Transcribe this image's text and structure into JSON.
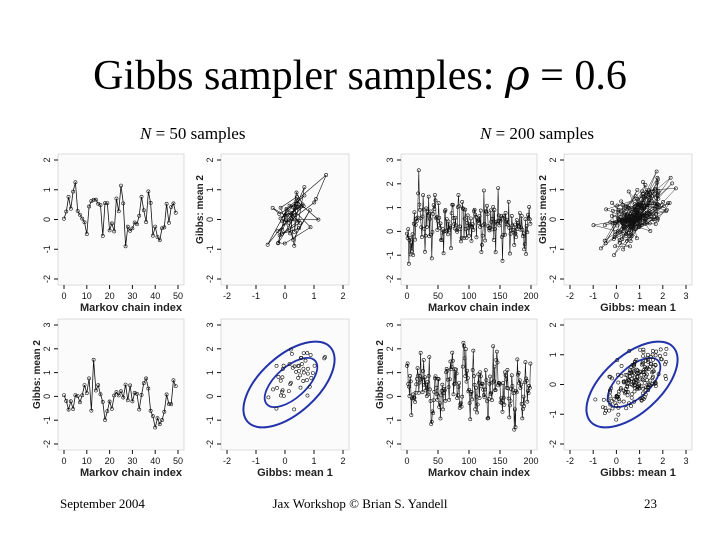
{
  "slide": {
    "title_prefix": "Gibbs sampler samples: ",
    "title_symbol": "ρ",
    "title_suffix": " = 0.6",
    "left_caption": {
      "n": "N",
      "rest": " = 50 samples"
    },
    "right_caption": {
      "n": "N",
      "rest": " = 200 samples"
    }
  },
  "footer": {
    "date": "September 2004",
    "center": "Jax Workshop © Brian S. Yandell",
    "page": "23"
  },
  "panels": [
    {
      "kind": "trace",
      "n": 50,
      "seed": 11,
      "xticks": [
        "0",
        "10",
        "20",
        "30",
        "40",
        "50"
      ],
      "yticks": [
        "-2",
        "-1",
        "0",
        "1",
        "2"
      ],
      "xlabel": "Markov chain index",
      "ylabel": "",
      "ymin": -2.5,
      "ymax": 2.5,
      "xmax": 50
    },
    {
      "kind": "pairs",
      "n": 50,
      "seed": 12,
      "xticks": [
        "-2",
        "-1",
        "0",
        "1",
        "2"
      ],
      "yticks": [
        "-2",
        "-1",
        "0",
        "1",
        "2"
      ],
      "xlabel": "",
      "ylabel": "Gibbs: mean 2"
    },
    {
      "kind": "trace",
      "n": 200,
      "seed": 21,
      "xticks": [
        "0",
        "50",
        "100",
        "150",
        "200"
      ],
      "yticks": [
        "-2",
        "-1",
        "0",
        "1",
        "2",
        "3"
      ],
      "xlabel": "Markov chain index",
      "ylabel": "",
      "ymin": -2.8,
      "ymax": 3.2,
      "xmax": 200
    },
    {
      "kind": "pairs",
      "n": 200,
      "seed": 22,
      "xticks": [
        "-2",
        "-1",
        "0",
        "1",
        "2",
        "3"
      ],
      "yticks": [
        "-2",
        "-1",
        "0",
        "1",
        "2"
      ],
      "xlabel": "Gibbs: mean 1",
      "ylabel": "Gibbs: mean 2"
    },
    {
      "kind": "trace",
      "n": 50,
      "seed": 31,
      "xticks": [
        "0",
        "10",
        "20",
        "30",
        "40",
        "50"
      ],
      "yticks": [
        "-2",
        "-1",
        "0",
        "1",
        "2",
        "3"
      ],
      "xlabel": "Markov chain index",
      "ylabel": "Gibbs: mean 2",
      "ymin": -2.5,
      "ymax": 3.3,
      "xmax": 50
    },
    {
      "kind": "ellipse",
      "n": 50,
      "seed": 32,
      "xticks": [
        "-2",
        "-1",
        "0",
        "1",
        "2"
      ],
      "yticks": [
        "-2",
        "-1",
        "0",
        "1",
        "2",
        "3"
      ],
      "xlabel": "Gibbs: mean 1",
      "ylabel": ""
    },
    {
      "kind": "trace",
      "n": 200,
      "seed": 41,
      "xticks": [
        "0",
        "50",
        "100",
        "150",
        "200"
      ],
      "yticks": [
        "-2",
        "-1",
        "0",
        "1",
        "2",
        "3"
      ],
      "xlabel": "Markov chain index",
      "ylabel": "Gibbs: mean 2",
      "ymin": -2.8,
      "ymax": 3.3,
      "xmax": 200
    },
    {
      "kind": "ellipse",
      "n": 200,
      "seed": 42,
      "xticks": [
        "-2",
        "-1",
        "0",
        "1",
        "2",
        "3"
      ],
      "yticks": [
        "-2",
        "-1",
        "0",
        "1",
        "2"
      ],
      "xlabel": "Gibbs: mean 1",
      "ylabel": ""
    }
  ],
  "colors": {
    "ellipse": "#2233aa",
    "ink": "#111111"
  }
}
